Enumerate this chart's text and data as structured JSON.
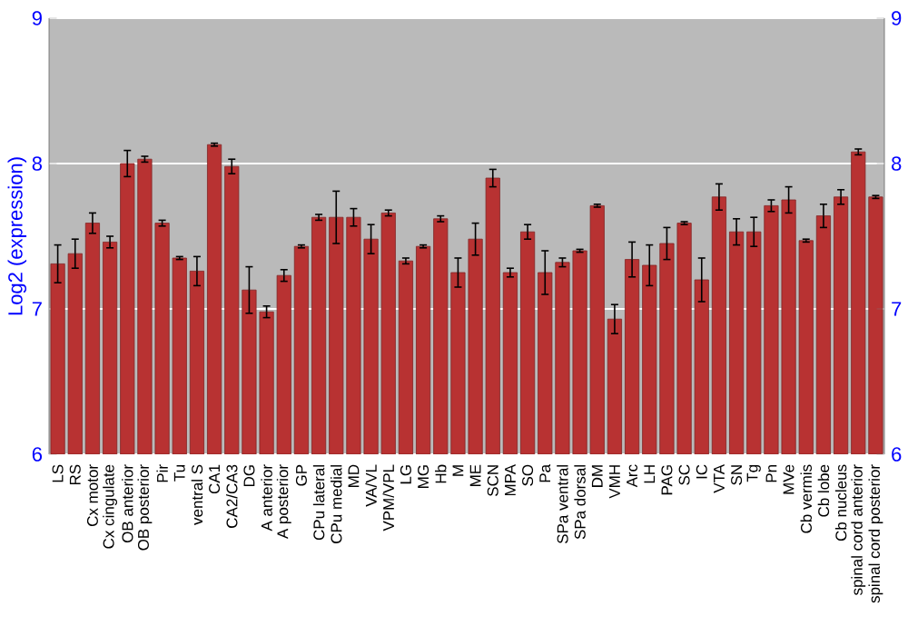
{
  "chart_data": {
    "type": "bar",
    "ylabel": "Log2 (expression)",
    "categories": [
      "LS",
      "RS",
      "Cx motor",
      "Cx cingulate",
      "OB anterior",
      "OB posterior",
      "Pir",
      "Tu",
      "ventral S",
      "CA1",
      "CA2/CA3",
      "DG",
      "A anterior",
      "A posterior",
      "GP",
      "CPu lateral",
      "CPu medial",
      "MD",
      "VA/VL",
      "VPM/VPL",
      "LG",
      "MG",
      "Hb",
      "M",
      "ME",
      "SCN",
      "MPA",
      "SO",
      "Pa",
      "SPa ventral",
      "SPa dorsal",
      "DM",
      "VMH",
      "Arc",
      "LH",
      "PAG",
      "SC",
      "IC",
      "VTA",
      "SN",
      "Tg",
      "Pn",
      "MVe",
      "Cb vermis",
      "Cb lobe",
      "Cb nucleus",
      "spinal cord anterior",
      "spinal cord posterior"
    ],
    "values": [
      7.31,
      7.38,
      7.59,
      7.46,
      8.0,
      8.03,
      7.59,
      7.35,
      7.26,
      8.13,
      7.98,
      7.13,
      6.98,
      7.23,
      7.43,
      7.63,
      7.63,
      7.63,
      7.48,
      7.66,
      7.33,
      7.43,
      7.62,
      7.25,
      7.48,
      7.9,
      7.25,
      7.53,
      7.25,
      7.32,
      7.4,
      7.71,
      6.93,
      7.34,
      7.3,
      7.45,
      7.59,
      7.2,
      7.77,
      7.53,
      7.53,
      7.71,
      7.75,
      7.47,
      7.64,
      7.77,
      8.08,
      7.77
    ],
    "errors": [
      0.13,
      0.1,
      0.07,
      0.04,
      0.09,
      0.02,
      0.02,
      0.01,
      0.1,
      0.01,
      0.05,
      0.16,
      0.04,
      0.04,
      0.01,
      0.02,
      0.18,
      0.06,
      0.1,
      0.02,
      0.02,
      0.01,
      0.02,
      0.1,
      0.11,
      0.06,
      0.03,
      0.05,
      0.15,
      0.03,
      0.01,
      0.01,
      0.1,
      0.12,
      0.14,
      0.11,
      0.01,
      0.15,
      0.09,
      0.09,
      0.1,
      0.04,
      0.09,
      0.01,
      0.08,
      0.05,
      0.02,
      0.01
    ],
    "color": "#b83232",
    "ylim": [
      6,
      9
    ],
    "yticks": [
      6,
      7,
      8,
      9
    ],
    "y2lim": [
      6,
      9
    ],
    "y2ticks": [
      6,
      7,
      8,
      9
    ],
    "grid": "y"
  }
}
